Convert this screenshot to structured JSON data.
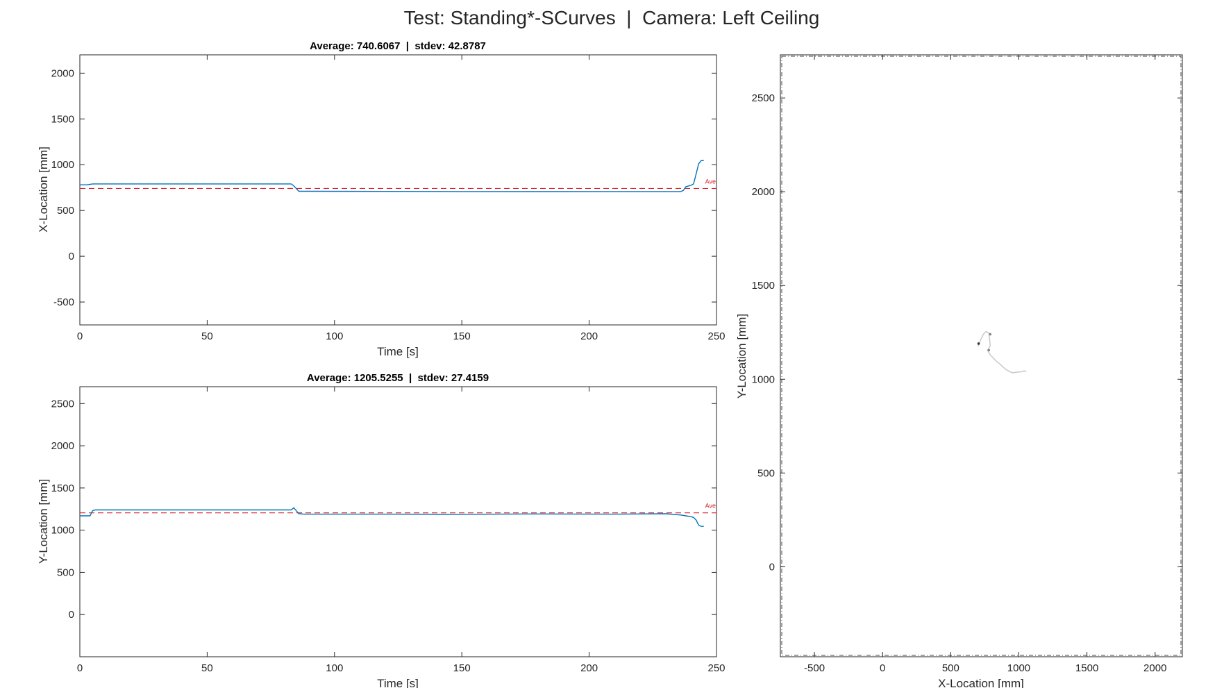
{
  "figure_title": "Test: Standing*-SCurves  |  Camera: Left Ceiling",
  "colors": {
    "series": "#0072BD",
    "average": "#D9232D",
    "trajectory": "#C8C8C8",
    "axis": "#262626"
  },
  "chart_data": [
    {
      "type": "line",
      "title": "Average: 740.6067  |  stdev: 42.8787",
      "xlabel": "Time [s]",
      "ylabel": "X-Location [mm]",
      "xlim": [
        0,
        250
      ],
      "ylim": [
        -750,
        2200
      ],
      "xticks": [
        0,
        50,
        100,
        150,
        200,
        250
      ],
      "yticks": [
        -500,
        0,
        500,
        1000,
        1500,
        2000
      ],
      "average": 740.6067,
      "average_label": "Ave",
      "series": [
        {
          "x": [
            0,
            3,
            5,
            10,
            30,
            60,
            83,
            84,
            86,
            90,
            120,
            150,
            180,
            210,
            236,
            237,
            238,
            240,
            241,
            242,
            243,
            244,
            245
          ],
          "y": [
            780,
            780,
            790,
            790,
            790,
            790,
            790,
            770,
            710,
            710,
            708,
            707,
            706,
            707,
            707,
            720,
            760,
            775,
            790,
            900,
            1010,
            1045,
            1045
          ]
        }
      ]
    },
    {
      "type": "line",
      "title": "Average: 1205.5255  |  stdev: 27.4159",
      "xlabel": "Time [s]",
      "ylabel": "Y-Location [mm]",
      "xlim": [
        0,
        250
      ],
      "ylim": [
        -500,
        2700
      ],
      "xticks": [
        0,
        50,
        100,
        150,
        200,
        250
      ],
      "yticks": [
        0,
        500,
        1000,
        1500,
        2000,
        2500
      ],
      "average": 1205.5255,
      "average_label": "Ave",
      "series": [
        {
          "x": [
            0,
            4,
            5,
            6,
            20,
            50,
            83,
            84,
            85,
            86,
            88,
            120,
            150,
            180,
            210,
            230,
            236,
            238,
            240,
            241,
            242,
            243,
            244,
            245
          ],
          "y": [
            1170,
            1170,
            1230,
            1240,
            1240,
            1240,
            1240,
            1265,
            1230,
            1195,
            1190,
            1190,
            1188,
            1192,
            1190,
            1195,
            1180,
            1170,
            1160,
            1150,
            1120,
            1060,
            1045,
            1045
          ]
        }
      ]
    },
    {
      "type": "scatter",
      "title": "",
      "xlabel": "X-Location [mm]",
      "ylabel": "Y-Location [mm]",
      "xlim": [
        -750,
        2200
      ],
      "ylim": [
        -480,
        2730
      ],
      "xticks": [
        -500,
        0,
        500,
        1000,
        1500,
        2000
      ],
      "yticks": [
        0,
        500,
        1000,
        1500,
        2000,
        2500
      ],
      "series": [
        {
          "x": [
            700,
            720,
            740,
            760,
            780,
            785,
            790,
            780,
            770,
            790,
            830,
            870,
            900,
            930,
            950,
            970,
            1000,
            1020,
            1040,
            1055
          ],
          "y": [
            1175,
            1210,
            1240,
            1255,
            1245,
            1215,
            1180,
            1165,
            1155,
            1130,
            1100,
            1075,
            1055,
            1042,
            1035,
            1036,
            1039,
            1040,
            1045,
            1040
          ]
        }
      ],
      "markers": [
        {
          "x": 705,
          "y": 1190,
          "color": "#333333"
        },
        {
          "x": 790,
          "y": 1240,
          "color": "#888888"
        },
        {
          "x": 780,
          "y": 1155,
          "color": "#888888"
        }
      ]
    }
  ]
}
